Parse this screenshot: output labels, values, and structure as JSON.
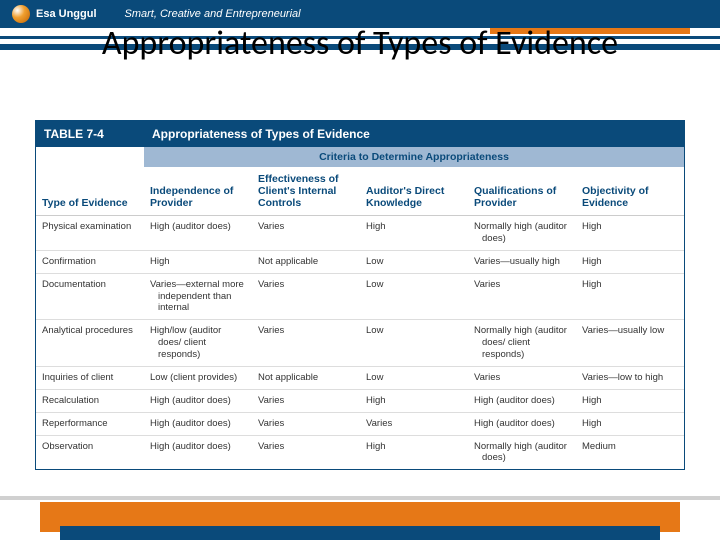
{
  "brand": {
    "name": "Esa Unggul",
    "tagline": "Smart, Creative and Entrepreneurial"
  },
  "slide": {
    "title": "Appropriateness of Types of Evidence"
  },
  "colors": {
    "navy": "#0a4a7a",
    "orange": "#e67817",
    "header_sub": "#9fb8d3",
    "text": "#333333",
    "rule": "#dddddd",
    "bg": "#ffffff"
  },
  "table": {
    "label": "TABLE 7-4",
    "caption": "Appropriateness of Types of Evidence",
    "criteria_banner": "Criteria to Determine Appropriateness",
    "columns": [
      "Type of Evidence",
      "Independence of Provider",
      "Effectiveness of Client's Internal Controls",
      "Auditor's Direct Knowledge",
      "Qualifications of Provider",
      "Objectivity of Evidence"
    ],
    "rows": [
      [
        "Physical examination",
        "High (auditor does)",
        "Varies",
        "High",
        "Normally high (auditor does)",
        "High"
      ],
      [
        "Confirmation",
        "High",
        "Not applicable",
        "Low",
        "Varies—usually high",
        "High"
      ],
      [
        "Documentation",
        "Varies—external more independent than internal",
        "Varies",
        "Low",
        "Varies",
        "High"
      ],
      [
        "Analytical procedures",
        "High/low (auditor does/ client responds)",
        "Varies",
        "Low",
        "Normally high (auditor does/ client responds)",
        "Varies—usually low"
      ],
      [
        "Inquiries of client",
        "Low (client provides)",
        "Not applicable",
        "Low",
        "Varies",
        "Varies—low to high"
      ],
      [
        "Recalculation",
        "High (auditor does)",
        "Varies",
        "High",
        "High (auditor does)",
        "High"
      ],
      [
        "Reperformance",
        "High (auditor does)",
        "Varies",
        "Varies",
        "High (auditor does)",
        "High"
      ],
      [
        "Observation",
        "High (auditor does)",
        "Varies",
        "High",
        "Normally high (auditor does)",
        "Medium"
      ]
    ]
  }
}
